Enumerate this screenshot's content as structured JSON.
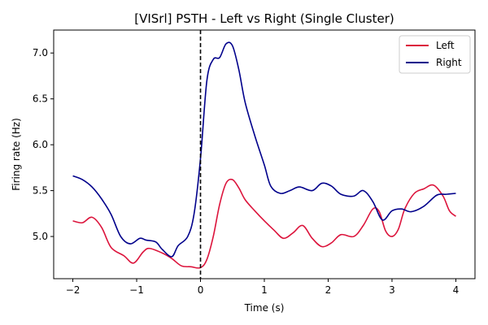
{
  "chart_data": {
    "type": "line",
    "title": "[VISrl] PSTH - Left vs Right (Single Cluster)",
    "xlabel": "Time (s)",
    "ylabel": "Firing rate (Hz)",
    "xlim": [
      -2.3,
      4.3
    ],
    "ylim": [
      4.54,
      7.25
    ],
    "xticks": [
      -2,
      -1,
      0,
      1,
      2,
      3,
      4
    ],
    "xtick_labels": [
      "−2",
      "−1",
      "0",
      "1",
      "2",
      "3",
      "4"
    ],
    "yticks": [
      5.0,
      5.5,
      6.0,
      6.5,
      7.0
    ],
    "ytick_labels": [
      "5.0",
      "5.5",
      "6.0",
      "6.5",
      "7.0"
    ],
    "grid": false,
    "legend_position": "top-right",
    "vline": {
      "x": 0,
      "style": "dashed",
      "color": "#000000"
    },
    "series": [
      {
        "name": "Left",
        "color": "#DC143C",
        "points": [
          [
            -2.0,
            5.17
          ],
          [
            -1.85,
            5.15
          ],
          [
            -1.7,
            5.21
          ],
          [
            -1.55,
            5.1
          ],
          [
            -1.4,
            4.88
          ],
          [
            -1.2,
            4.79
          ],
          [
            -1.05,
            4.71
          ],
          [
            -0.9,
            4.83
          ],
          [
            -0.8,
            4.87
          ],
          [
            -0.6,
            4.82
          ],
          [
            -0.45,
            4.76
          ],
          [
            -0.3,
            4.68
          ],
          [
            -0.15,
            4.67
          ],
          [
            0.0,
            4.66
          ],
          [
            0.1,
            4.75
          ],
          [
            0.2,
            5.0
          ],
          [
            0.3,
            5.35
          ],
          [
            0.4,
            5.58
          ],
          [
            0.5,
            5.62
          ],
          [
            0.6,
            5.53
          ],
          [
            0.7,
            5.4
          ],
          [
            0.85,
            5.28
          ],
          [
            1.0,
            5.17
          ],
          [
            1.15,
            5.07
          ],
          [
            1.3,
            4.98
          ],
          [
            1.45,
            5.04
          ],
          [
            1.6,
            5.12
          ],
          [
            1.75,
            4.98
          ],
          [
            1.9,
            4.89
          ],
          [
            2.05,
            4.93
          ],
          [
            2.2,
            5.02
          ],
          [
            2.4,
            5.0
          ],
          [
            2.55,
            5.12
          ],
          [
            2.7,
            5.3
          ],
          [
            2.8,
            5.27
          ],
          [
            2.9,
            5.06
          ],
          [
            3.0,
            5.0
          ],
          [
            3.1,
            5.08
          ],
          [
            3.2,
            5.3
          ],
          [
            3.35,
            5.47
          ],
          [
            3.5,
            5.52
          ],
          [
            3.65,
            5.56
          ],
          [
            3.8,
            5.44
          ],
          [
            3.9,
            5.28
          ],
          [
            4.0,
            5.22
          ]
        ]
      },
      {
        "name": "Right",
        "color": "#00008B",
        "points": [
          [
            -2.0,
            5.66
          ],
          [
            -1.85,
            5.62
          ],
          [
            -1.7,
            5.54
          ],
          [
            -1.55,
            5.41
          ],
          [
            -1.4,
            5.24
          ],
          [
            -1.25,
            5.0
          ],
          [
            -1.1,
            4.92
          ],
          [
            -0.95,
            4.98
          ],
          [
            -0.85,
            4.96
          ],
          [
            -0.7,
            4.94
          ],
          [
            -0.6,
            4.86
          ],
          [
            -0.45,
            4.78
          ],
          [
            -0.35,
            4.9
          ],
          [
            -0.2,
            5.0
          ],
          [
            -0.1,
            5.25
          ],
          [
            0.0,
            5.85
          ],
          [
            0.1,
            6.7
          ],
          [
            0.2,
            6.93
          ],
          [
            0.3,
            6.95
          ],
          [
            0.4,
            7.1
          ],
          [
            0.5,
            7.08
          ],
          [
            0.6,
            6.82
          ],
          [
            0.7,
            6.46
          ],
          [
            0.85,
            6.1
          ],
          [
            1.0,
            5.78
          ],
          [
            1.1,
            5.55
          ],
          [
            1.25,
            5.47
          ],
          [
            1.4,
            5.5
          ],
          [
            1.55,
            5.54
          ],
          [
            1.75,
            5.5
          ],
          [
            1.9,
            5.58
          ],
          [
            2.05,
            5.55
          ],
          [
            2.2,
            5.46
          ],
          [
            2.4,
            5.44
          ],
          [
            2.55,
            5.5
          ],
          [
            2.7,
            5.38
          ],
          [
            2.85,
            5.18
          ],
          [
            3.0,
            5.28
          ],
          [
            3.15,
            5.3
          ],
          [
            3.3,
            5.27
          ],
          [
            3.5,
            5.33
          ],
          [
            3.7,
            5.45
          ],
          [
            3.85,
            5.46
          ],
          [
            4.0,
            5.47
          ]
        ]
      }
    ]
  }
}
